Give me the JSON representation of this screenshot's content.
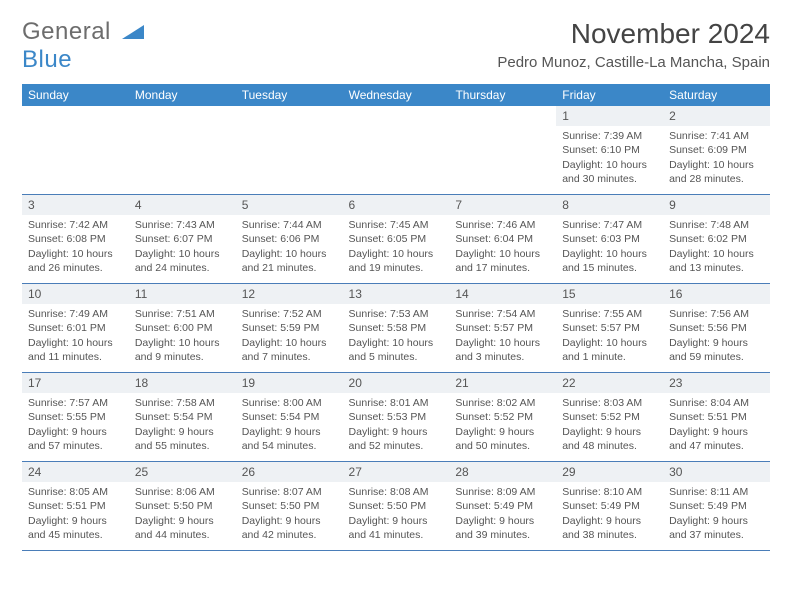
{
  "logo": {
    "text1": "General",
    "text2": "Blue"
  },
  "title": "November 2024",
  "location": "Pedro Munoz, Castille-La Mancha, Spain",
  "style": {
    "header_bg": "#3b87c8",
    "daynum_bg": "#eef1f4",
    "sep_color": "#4a7db8"
  },
  "weekdays": [
    "Sunday",
    "Monday",
    "Tuesday",
    "Wednesday",
    "Thursday",
    "Friday",
    "Saturday"
  ],
  "weeks": [
    [
      {
        "empty": true
      },
      {
        "empty": true
      },
      {
        "empty": true
      },
      {
        "empty": true
      },
      {
        "empty": true
      },
      {
        "day": "1",
        "sunrise": "Sunrise: 7:39 AM",
        "sunset": "Sunset: 6:10 PM",
        "daylight": "Daylight: 10 hours and 30 minutes."
      },
      {
        "day": "2",
        "sunrise": "Sunrise: 7:41 AM",
        "sunset": "Sunset: 6:09 PM",
        "daylight": "Daylight: 10 hours and 28 minutes."
      }
    ],
    [
      {
        "day": "3",
        "sunrise": "Sunrise: 7:42 AM",
        "sunset": "Sunset: 6:08 PM",
        "daylight": "Daylight: 10 hours and 26 minutes."
      },
      {
        "day": "4",
        "sunrise": "Sunrise: 7:43 AM",
        "sunset": "Sunset: 6:07 PM",
        "daylight": "Daylight: 10 hours and 24 minutes."
      },
      {
        "day": "5",
        "sunrise": "Sunrise: 7:44 AM",
        "sunset": "Sunset: 6:06 PM",
        "daylight": "Daylight: 10 hours and 21 minutes."
      },
      {
        "day": "6",
        "sunrise": "Sunrise: 7:45 AM",
        "sunset": "Sunset: 6:05 PM",
        "daylight": "Daylight: 10 hours and 19 minutes."
      },
      {
        "day": "7",
        "sunrise": "Sunrise: 7:46 AM",
        "sunset": "Sunset: 6:04 PM",
        "daylight": "Daylight: 10 hours and 17 minutes."
      },
      {
        "day": "8",
        "sunrise": "Sunrise: 7:47 AM",
        "sunset": "Sunset: 6:03 PM",
        "daylight": "Daylight: 10 hours and 15 minutes."
      },
      {
        "day": "9",
        "sunrise": "Sunrise: 7:48 AM",
        "sunset": "Sunset: 6:02 PM",
        "daylight": "Daylight: 10 hours and 13 minutes."
      }
    ],
    [
      {
        "day": "10",
        "sunrise": "Sunrise: 7:49 AM",
        "sunset": "Sunset: 6:01 PM",
        "daylight": "Daylight: 10 hours and 11 minutes."
      },
      {
        "day": "11",
        "sunrise": "Sunrise: 7:51 AM",
        "sunset": "Sunset: 6:00 PM",
        "daylight": "Daylight: 10 hours and 9 minutes."
      },
      {
        "day": "12",
        "sunrise": "Sunrise: 7:52 AM",
        "sunset": "Sunset: 5:59 PM",
        "daylight": "Daylight: 10 hours and 7 minutes."
      },
      {
        "day": "13",
        "sunrise": "Sunrise: 7:53 AM",
        "sunset": "Sunset: 5:58 PM",
        "daylight": "Daylight: 10 hours and 5 minutes."
      },
      {
        "day": "14",
        "sunrise": "Sunrise: 7:54 AM",
        "sunset": "Sunset: 5:57 PM",
        "daylight": "Daylight: 10 hours and 3 minutes."
      },
      {
        "day": "15",
        "sunrise": "Sunrise: 7:55 AM",
        "sunset": "Sunset: 5:57 PM",
        "daylight": "Daylight: 10 hours and 1 minute."
      },
      {
        "day": "16",
        "sunrise": "Sunrise: 7:56 AM",
        "sunset": "Sunset: 5:56 PM",
        "daylight": "Daylight: 9 hours and 59 minutes."
      }
    ],
    [
      {
        "day": "17",
        "sunrise": "Sunrise: 7:57 AM",
        "sunset": "Sunset: 5:55 PM",
        "daylight": "Daylight: 9 hours and 57 minutes."
      },
      {
        "day": "18",
        "sunrise": "Sunrise: 7:58 AM",
        "sunset": "Sunset: 5:54 PM",
        "daylight": "Daylight: 9 hours and 55 minutes."
      },
      {
        "day": "19",
        "sunrise": "Sunrise: 8:00 AM",
        "sunset": "Sunset: 5:54 PM",
        "daylight": "Daylight: 9 hours and 54 minutes."
      },
      {
        "day": "20",
        "sunrise": "Sunrise: 8:01 AM",
        "sunset": "Sunset: 5:53 PM",
        "daylight": "Daylight: 9 hours and 52 minutes."
      },
      {
        "day": "21",
        "sunrise": "Sunrise: 8:02 AM",
        "sunset": "Sunset: 5:52 PM",
        "daylight": "Daylight: 9 hours and 50 minutes."
      },
      {
        "day": "22",
        "sunrise": "Sunrise: 8:03 AM",
        "sunset": "Sunset: 5:52 PM",
        "daylight": "Daylight: 9 hours and 48 minutes."
      },
      {
        "day": "23",
        "sunrise": "Sunrise: 8:04 AM",
        "sunset": "Sunset: 5:51 PM",
        "daylight": "Daylight: 9 hours and 47 minutes."
      }
    ],
    [
      {
        "day": "24",
        "sunrise": "Sunrise: 8:05 AM",
        "sunset": "Sunset: 5:51 PM",
        "daylight": "Daylight: 9 hours and 45 minutes."
      },
      {
        "day": "25",
        "sunrise": "Sunrise: 8:06 AM",
        "sunset": "Sunset: 5:50 PM",
        "daylight": "Daylight: 9 hours and 44 minutes."
      },
      {
        "day": "26",
        "sunrise": "Sunrise: 8:07 AM",
        "sunset": "Sunset: 5:50 PM",
        "daylight": "Daylight: 9 hours and 42 minutes."
      },
      {
        "day": "27",
        "sunrise": "Sunrise: 8:08 AM",
        "sunset": "Sunset: 5:50 PM",
        "daylight": "Daylight: 9 hours and 41 minutes."
      },
      {
        "day": "28",
        "sunrise": "Sunrise: 8:09 AM",
        "sunset": "Sunset: 5:49 PM",
        "daylight": "Daylight: 9 hours and 39 minutes."
      },
      {
        "day": "29",
        "sunrise": "Sunrise: 8:10 AM",
        "sunset": "Sunset: 5:49 PM",
        "daylight": "Daylight: 9 hours and 38 minutes."
      },
      {
        "day": "30",
        "sunrise": "Sunrise: 8:11 AM",
        "sunset": "Sunset: 5:49 PM",
        "daylight": "Daylight: 9 hours and 37 minutes."
      }
    ]
  ]
}
